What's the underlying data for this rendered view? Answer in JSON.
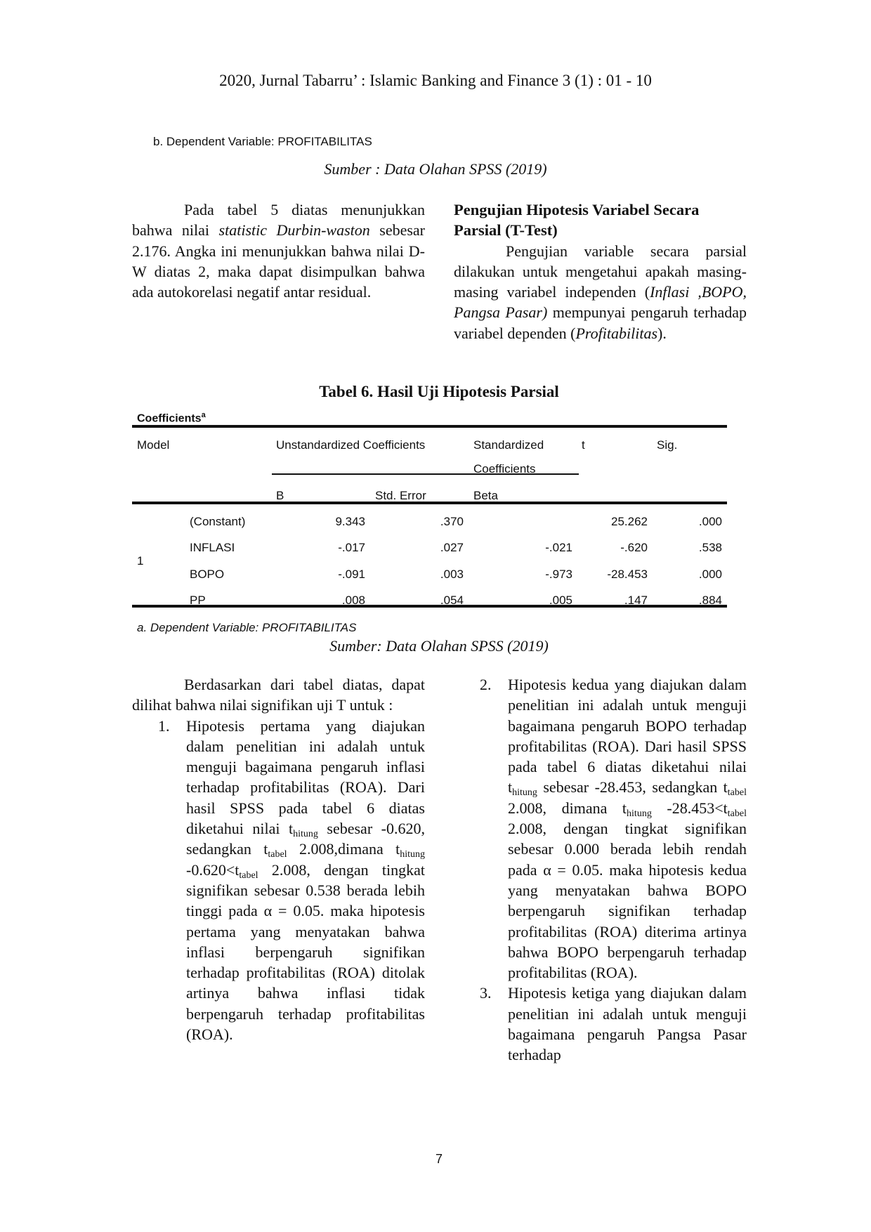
{
  "header": "2020, Jurnal Tabarru’ : Islamic Banking and Finance 3 (1) : 01 - 10",
  "prev_note": "b. Dependent Variable: PROFITABILITAS",
  "prev_source": "Sumber : Data Olahan SPSS (2019)",
  "left_para": [
    {
      "t": "Pada tabel 5 diatas menunjukkan bahwa nilai "
    },
    {
      "t": "statistic Durbin-waston",
      "i": true
    },
    {
      "t": " sebesar 2.176. Angka ini menunjukkan bahwa nilai D-W diatas 2, maka dapat disimpulkan bahwa ada autokorelasi negatif antar residual."
    }
  ],
  "right_heading": "Pengujian Hipotesis Variabel Secara Parsial (T-Test)",
  "right_para": [
    {
      "t": "Pengujian variable secara parsial dilakukan untuk mengetahui apakah masing-masing variabel independen ("
    },
    {
      "t": "Inflasi ,BOPO, Pangsa Pasar)",
      "i": true
    },
    {
      "t": " mempunyai pengaruh terhadap variabel dependen ("
    },
    {
      "t": "Profitabilitas",
      "i": true
    },
    {
      "t": ")."
    }
  ],
  "table": {
    "title": "Tabel 6. Hasil Uji Hipotesis Parsial",
    "caption": "Coefficients",
    "caption_sup": "a",
    "headers": {
      "model": "Model",
      "unstd": "Unstandardized Coefficients",
      "std1": "Standardized",
      "std2": "Coefficients",
      "t": "t",
      "sig": "Sig.",
      "b": "B",
      "se": "Std. Error",
      "beta": "Beta"
    },
    "model_num": "1",
    "rows": [
      {
        "var": "(Constant)",
        "b": "9.343",
        "se": ".370",
        "beta": "",
        "t": "25.262",
        "sig": ".000"
      },
      {
        "var": "INFLASI",
        "b": "-.017",
        "se": ".027",
        "beta": "-.021",
        "t": "-.620",
        "sig": ".538"
      },
      {
        "var": "BOPO",
        "b": "-.091",
        "se": ".003",
        "beta": "-.973",
        "t": "-28.453",
        "sig": ".000"
      },
      {
        "var": "PP",
        "b": ".008",
        "se": ".054",
        "beta": ".005",
        "t": ".147",
        "sig": ".884"
      }
    ],
    "note": "a. Dependent Variable: PROFITABILITAS",
    "source": "Sumber: Data Olahan SPSS (2019)"
  },
  "bottom_left_intro": "Berdasarkan dari tabel diatas, dapat dilihat bahwa nilai signifikan uji T untuk :",
  "list": [
    {
      "num": "1.",
      "parts": [
        {
          "t": "Hipotesis pertama yang diajukan dalam penelitian ini adalah untuk menguji bagaimana pengaruh inflasi terhadap profitabilitas (ROA). Dari hasil SPSS pada tabel 6 diatas diketahui nilai t"
        },
        {
          "t": "hitung",
          "s": true
        },
        {
          "t": " sebesar -0.620, sedangkan t"
        },
        {
          "t": "tabel",
          "s": true
        },
        {
          "t": " 2.008,dimana t"
        },
        {
          "t": "hitung",
          "s": true
        },
        {
          "t": " -0.620<t"
        },
        {
          "t": "tabel",
          "s": true
        },
        {
          "t": " 2.008, dengan tingkat signifikan sebesar 0.538 berada lebih tinggi pada α = 0.05. maka hipotesis pertama yang menyatakan bahwa inflasi berpengaruh signifikan terhadap profitabilitas (ROA) ditolak artinya bahwa inflasi tidak berpengaruh terhadap profitabilitas (ROA)."
        }
      ]
    },
    {
      "num": "2.",
      "parts": [
        {
          "t": "Hipotesis kedua yang diajukan dalam penelitian ini adalah untuk menguji bagaimana pengaruh BOPO terhadap profitabilitas (ROA). Dari hasil SPSS pada tabel 6 diatas diketahui nilai t"
        },
        {
          "t": "hitung",
          "s": true
        },
        {
          "t": " sebesar -28.453, sedangkan t"
        },
        {
          "t": "tabel",
          "s": true
        },
        {
          "t": " 2.008, dimana t"
        },
        {
          "t": "hitung",
          "s": true
        },
        {
          "t": " -28.453<t"
        },
        {
          "t": "tabel",
          "s": true
        },
        {
          "t": " 2.008, dengan tingkat signifikan sebesar 0.000 berada lebih rendah pada α = 0.05. maka hipotesis kedua yang menyatakan bahwa BOPO berpengaruh signifikan terhadap profitabilitas (ROA) diterima artinya bahwa BOPO berpengaruh terhadap profitabilitas (ROA)."
        }
      ]
    },
    {
      "num": "3.",
      "parts": [
        {
          "t": "Hipotesis ketiga yang diajukan dalam penelitian ini adalah untuk menguji bagaimana pengaruh Pangsa Pasar terhadap"
        }
      ]
    }
  ],
  "page_number": "7"
}
